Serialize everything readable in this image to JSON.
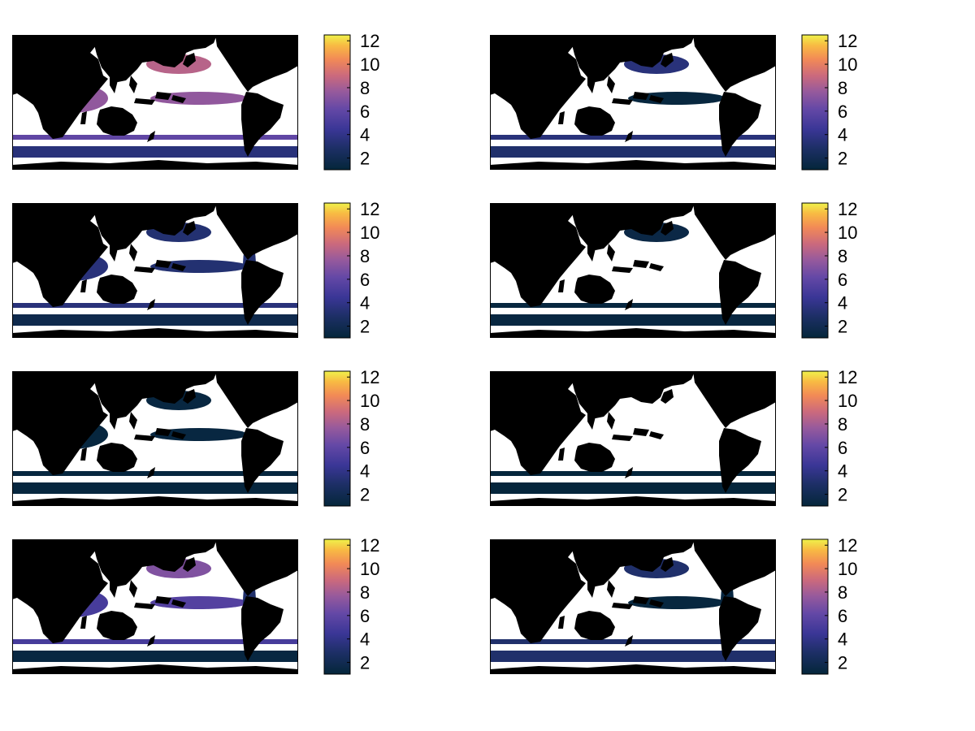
{
  "chart_data": [
    {
      "type": "heatmap",
      "colorbar": {
        "ticks": [
          "2",
          "4",
          "6",
          "8",
          "10",
          "12"
        ],
        "range": [
          1,
          12.5
        ]
      },
      "land_color": "#000000",
      "no_data_color": "#ffffff",
      "intensity": {
        "np": 8.5,
        "ni": 7.5,
        "eq": 7.5,
        "so_belt": 6,
        "so_band": 3.5,
        "coastal": 0
      }
    },
    {
      "type": "heatmap",
      "colorbar": {
        "ticks": [
          "2",
          "4",
          "6",
          "8",
          "10",
          "12"
        ],
        "range": [
          1,
          12.5
        ]
      },
      "land_color": "#000000",
      "no_data_color": "#ffffff",
      "intensity": {
        "np": 3.5,
        "ni": 0,
        "eq": 1.2,
        "so_belt": 3.5,
        "so_band": 3.0,
        "coastal": 0
      }
    },
    {
      "type": "heatmap",
      "colorbar": {
        "ticks": [
          "2",
          "4",
          "6",
          "8",
          "10",
          "12"
        ],
        "range": [
          1,
          12.5
        ]
      },
      "land_color": "#000000",
      "no_data_color": "#ffffff",
      "intensity": {
        "np": 3.2,
        "ni": 3.5,
        "eq": 3.2,
        "so_belt": 3.5,
        "so_band": 1.8,
        "coastal": 3.2
      }
    },
    {
      "type": "heatmap",
      "colorbar": {
        "ticks": [
          "2",
          "4",
          "6",
          "8",
          "10",
          "12"
        ],
        "range": [
          1,
          12.5
        ]
      },
      "land_color": "#000000",
      "no_data_color": "#ffffff",
      "intensity": {
        "np": 1.5,
        "ni": 0,
        "eq": 0,
        "so_belt": 1.2,
        "so_band": 1.3,
        "coastal": 0
      }
    },
    {
      "type": "heatmap",
      "colorbar": {
        "ticks": [
          "2",
          "4",
          "6",
          "8",
          "10",
          "12"
        ],
        "range": [
          1,
          12.5
        ]
      },
      "land_color": "#000000",
      "no_data_color": "#ffffff",
      "intensity": {
        "np": 1.3,
        "ni": 1.2,
        "eq": 1.3,
        "so_belt": 1.2,
        "so_band": 1.2,
        "coastal": 0
      }
    },
    {
      "type": "heatmap",
      "colorbar": {
        "ticks": [
          "2",
          "4",
          "6",
          "8",
          "10",
          "12"
        ],
        "range": [
          1,
          12.5
        ]
      },
      "land_color": "#000000",
      "no_data_color": "#ffffff",
      "intensity": {
        "np": 0,
        "ni": 0,
        "eq": 0,
        "so_belt": 1.1,
        "so_band": 1.1,
        "coastal": 0
      }
    },
    {
      "type": "heatmap",
      "colorbar": {
        "ticks": [
          "2",
          "4",
          "6",
          "8",
          "10",
          "12"
        ],
        "range": [
          1,
          12.5
        ]
      },
      "land_color": "#000000",
      "no_data_color": "#ffffff",
      "intensity": {
        "np": 7.0,
        "ni": 5.0,
        "eq": 5.5,
        "so_belt": 5.0,
        "so_band": 1.3,
        "coastal": 3.0
      }
    },
    {
      "type": "heatmap",
      "colorbar": {
        "ticks": [
          "2",
          "4",
          "6",
          "8",
          "10",
          "12"
        ],
        "range": [
          1,
          12.5
        ]
      },
      "land_color": "#000000",
      "no_data_color": "#ffffff",
      "intensity": {
        "np": 3.0,
        "ni": 0,
        "eq": 1.2,
        "so_belt": 3.0,
        "so_band": 3.0,
        "coastal": 1.3
      }
    }
  ]
}
